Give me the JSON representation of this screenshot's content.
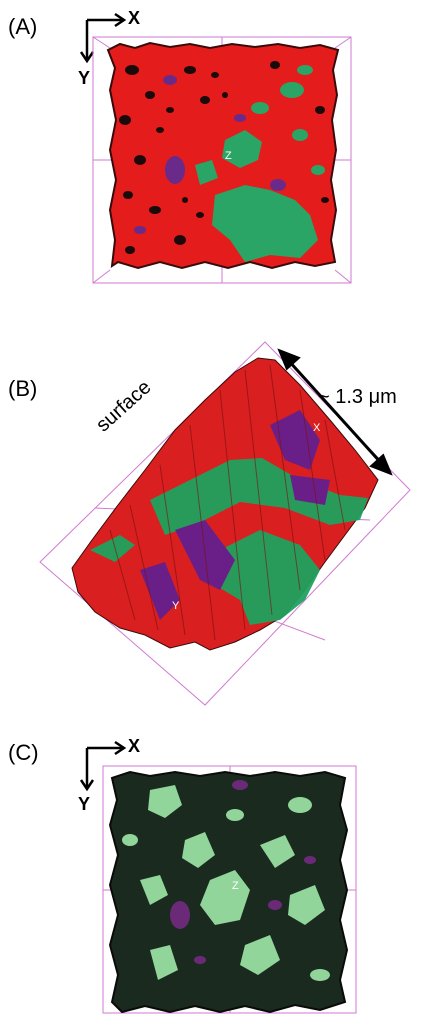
{
  "panels": [
    {
      "label": "(A)",
      "axes": {
        "x": "X",
        "y": "Y"
      },
      "center_marker": "Z",
      "colors": {
        "dominant": "#e41c1c",
        "secondary": "#2aa566",
        "tertiary": "#6a2a8a",
        "holes": "#1a0a0a"
      }
    },
    {
      "label": "(B)",
      "surface_label": "surface",
      "scale_label": "~ 1.3 μm",
      "markers": [
        "X",
        "Y"
      ],
      "colors": {
        "red": "#d91f1f",
        "green": "#1fa25f",
        "purple": "#6a1f88"
      }
    },
    {
      "label": "(C)",
      "axes": {
        "x": "X",
        "y": "Y"
      },
      "center_marker": "Z",
      "colors": {
        "dominant": "#1b2a1e",
        "light_green": "#9ee8a8",
        "purple": "#6a2a78"
      }
    }
  ],
  "box_color": "#d07ad0"
}
